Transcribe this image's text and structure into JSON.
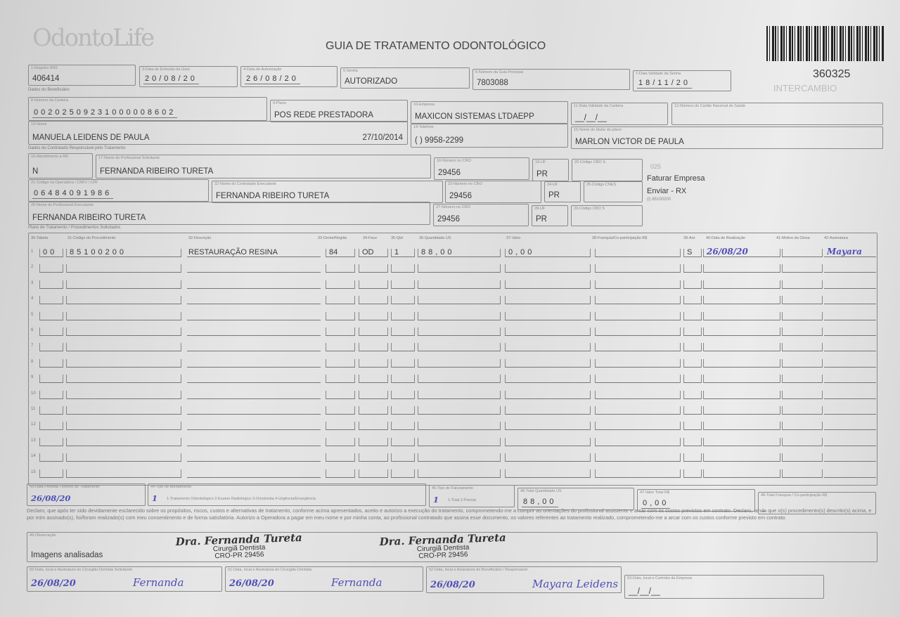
{
  "header": {
    "logo": "OdontoLife",
    "title": "GUIA DE TRATAMENTO ODONTOLÓGICO",
    "guide_number": "360325",
    "intercambio": "INTERCAMBIO"
  },
  "fields": {
    "f1": {
      "label": "1-Registro ANS",
      "value": "406414"
    },
    "f3": {
      "label": "3-Data de Emissão da Guia",
      "value": "20/08/20"
    },
    "f4": {
      "label": "4-Data de Autorização",
      "value": "26/08/20"
    },
    "f5": {
      "label": "5-Senha",
      "value": "AUTORIZADO"
    },
    "f6": {
      "label": "6-Número da Guia Principal",
      "value": "7803088"
    },
    "f7": {
      "label": "7-Data Validade da Senha",
      "value": "18/11/20"
    },
    "f8": {
      "label": "8-Número da Carteira",
      "value": "00202509231000008602"
    },
    "f9": {
      "label": "9-Plano",
      "value": "POS REDE PRESTADORA"
    },
    "f10": {
      "label": "10-Empresa",
      "value": "MAXICON SISTEMAS LTDAEPP"
    },
    "f11": {
      "label": "11-Data Validade da Carteira",
      "value": "__/__/__"
    },
    "f12": {
      "label": "12-Número do Cartão Nacional de Saúde",
      "value": ""
    },
    "f13": {
      "label": "13-Nome",
      "value": "MANUELA LEIDENS DE PAULA",
      "date": "27/10/2014"
    },
    "f14": {
      "label": "14-Telefone",
      "value": "(  ) 9958-2299"
    },
    "f15": {
      "label": "15-Nome do titular do plano",
      "value": "MARLON VICTOR DE PAULA"
    },
    "f16": {
      "label": "16-Atendimento a RN",
      "value": "N"
    },
    "f17": {
      "label": "17-Nome do Profissional Solicitante",
      "value": "FERNANDA RIBEIRO TURETA"
    },
    "f18": {
      "label": "18-Número no CRO",
      "value": "29456"
    },
    "f19": {
      "label": "19-UF",
      "value": "PR"
    },
    "f20": {
      "label": "20-Código CBO S",
      "value": ""
    },
    "f21": {
      "label": "21-Código na Operadora / CNPJ / CPF",
      "value": "06484091986"
    },
    "f22": {
      "label": "22-Nome do Contratado Executante",
      "value": "FERNANDA RIBEIRO TURETA"
    },
    "f23": {
      "label": "23-Número no CRO",
      "value": "29456"
    },
    "f24": {
      "label": "24-UF",
      "value": "PR"
    },
    "f25": {
      "label": "25-Código CNES",
      "value": ""
    },
    "f26": {
      "label": "26-Nome do Profissional Executante",
      "value": "FERNANDA RIBEIRO TURETA"
    },
    "f27": {
      "label": "27-Número no CRO",
      "value": "29456"
    },
    "f28": {
      "label": "28-UF",
      "value": "PR"
    },
    "f29": {
      "label": "29-Código CBO S",
      "value": ""
    },
    "f43": {
      "label": "43-Data Prevista Término do Tratamento",
      "value": "26/08/20"
    },
    "f44": {
      "label": "44-Tipo de Atendimento",
      "value": "1",
      "options": "1-Tratamento Odontológico  2-Exame Radiológico  3-Ortodontia  4-Urgência/Emergência"
    },
    "f45": {
      "label": "45-Tipo de Faturamento",
      "value": "1",
      "options": "1-Total  2-Parcial"
    },
    "f46": {
      "label": "46-Total Quantidade US",
      "value": "88,00"
    },
    "f47": {
      "label": "47-Valor Total R$",
      "value": "0,00"
    },
    "f48": {
      "label": "48-Total Franquia / Co-participação R$",
      "value": ""
    },
    "f49": {
      "label": "49-Observação",
      "value": "Imagens analisadas"
    },
    "f50": {
      "label": "50-Data, local e Assinatura do Cirurgião-Dentista Solicitante",
      "date": "26/08/20",
      "sign": "Fernanda"
    },
    "f51": {
      "label": "51-Data, local e Assinatura do Cirurgião-Dentista",
      "date": "26/08/20",
      "sign": "Fernanda"
    },
    "f52": {
      "label": "52-Data, local e Assinatura do Beneficiário / Responsável",
      "date": "26/08/20",
      "sign": "Mayara Leidens"
    },
    "f53": {
      "label": "53-Data, local e Carimbo da Empresa",
      "date": "__/__/__"
    }
  },
  "side_notes": {
    "code": "025",
    "billing": "Faturar Empresa",
    "send": "Enviar - RX",
    "phone": "(I) 85100200"
  },
  "sections": {
    "beneficiary": "Dados do Beneficiário",
    "contractor": "Dados do Contratado Responsável pelo Tratamento",
    "plan": "Plano de Tratamento / Procedimentos Solicitados"
  },
  "table": {
    "columns": [
      "30-Tabela",
      "31-Código do Procedimento",
      "32-Descrição",
      "33-Dente/Região",
      "34-Face",
      "35-Qtd",
      "36-Quantidade US",
      "37-Valor",
      "38-Franquia/Co-participação R$",
      "39-Aut",
      "40-Data de Realização",
      "41-Motivo da Glosa",
      "42-Assinatura"
    ],
    "rows": [
      {
        "num": "1",
        "tabela": "00",
        "codigo": "85100200",
        "descricao": "RESTAURAÇÃO RESINA",
        "dente": "84",
        "face": "OD",
        "qtd": "1",
        "qtd_us": "88,00",
        "valor": "0,00",
        "franquia": "",
        "aut": "S",
        "data": "26/08/20",
        "motivo": "",
        "assinatura": "Mayara"
      }
    ],
    "row_count": 15
  },
  "declaration": "Declaro, que após ter sido devidamente esclarecido sobre os propósitos, riscos, custos e alternativas de tratamento, conforme acima apresentados, aceito e autorizo a execução do tratamento, comprometendo-me a cumprir as orientações do profissional assistente e arcar com os custos previstos em contrato. Declaro, ainda que o(s) procedimento(s) descrito(s) acima, e por mim assinado(s), foi/foram realizado(s) com meu consentimento e de forma satisfatória. Autorizo a Operadora a pagar em meu nome e por minha conta, ao profissional contratado que assina esse documento, os valores referentes ao tratamento realizado, comprometendo-me a arcar com os custos conforme previsto em contrato.",
  "stamp": {
    "name": "Dra. Fernanda Tureta",
    "title": "Cirurgiã Dentista",
    "cro": "CRO-PR 29456"
  }
}
